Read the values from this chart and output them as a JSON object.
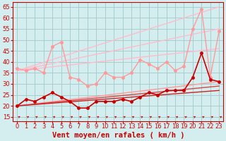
{
  "xlabel": "Vent moyen/en rafales ( km/h )",
  "bg_color": "#d4eef0",
  "grid_color": "#a8cdd0",
  "xlim": [
    -0.5,
    23.5
  ],
  "ylim": [
    13,
    67
  ],
  "yticks": [
    15,
    20,
    25,
    30,
    35,
    40,
    45,
    50,
    55,
    60,
    65
  ],
  "xticks": [
    0,
    1,
    2,
    3,
    4,
    5,
    6,
    7,
    8,
    9,
    10,
    11,
    12,
    13,
    14,
    15,
    16,
    17,
    18,
    19,
    20,
    21,
    22,
    23
  ],
  "lines": [
    {
      "x": [
        0,
        23
      ],
      "y": [
        36,
        65
      ],
      "color": "#ffbbcc",
      "lw": 1.0,
      "marker": null,
      "zorder": 2
    },
    {
      "x": [
        0,
        23
      ],
      "y": [
        36,
        55
      ],
      "color": "#ffbbcc",
      "lw": 1.0,
      "marker": null,
      "zorder": 2
    },
    {
      "x": [
        0,
        23
      ],
      "y": [
        36,
        46
      ],
      "color": "#ffbbcc",
      "lw": 1.0,
      "marker": null,
      "zorder": 2
    },
    {
      "x": [
        0,
        23
      ],
      "y": [
        20,
        31
      ],
      "color": "#ff9999",
      "lw": 1.0,
      "marker": null,
      "zorder": 2
    },
    {
      "x": [
        0,
        23
      ],
      "y": [
        20,
        29
      ],
      "color": "#dd4444",
      "lw": 1.0,
      "marker": null,
      "zorder": 2
    },
    {
      "x": [
        0,
        23
      ],
      "y": [
        20,
        27
      ],
      "color": "#cc2222",
      "lw": 1.0,
      "marker": null,
      "zorder": 2
    },
    {
      "x": [
        0,
        1,
        2,
        3,
        4,
        5,
        6,
        7,
        8,
        9,
        10,
        11,
        12,
        13,
        14,
        15,
        16,
        17,
        18,
        19,
        20,
        21,
        22,
        23
      ],
      "y": [
        37,
        36,
        37,
        35,
        47,
        49,
        33,
        32,
        29,
        30,
        35,
        33,
        33,
        35,
        41,
        39,
        37,
        40,
        36,
        38,
        55,
        64,
        33,
        54
      ],
      "color": "#ff9999",
      "lw": 1.0,
      "marker": "o",
      "ms": 2.5,
      "zorder": 4
    },
    {
      "x": [
        0,
        1,
        2,
        3,
        4,
        5,
        6,
        7,
        8,
        9,
        10,
        11,
        12,
        13,
        14,
        15,
        16,
        17,
        18,
        19,
        20,
        21,
        22,
        23
      ],
      "y": [
        20,
        23,
        22,
        24,
        26,
        24,
        22,
        19,
        19,
        22,
        22,
        22,
        23,
        22,
        24,
        26,
        25,
        27,
        27,
        27,
        33,
        44,
        32,
        31
      ],
      "color": "#cc0000",
      "lw": 1.2,
      "marker": "o",
      "ms": 2.5,
      "zorder": 5
    }
  ],
  "arrow_color": "#cc0000",
  "xlabel_color": "#cc0000",
  "xlabel_fontsize": 7.5,
  "tick_fontsize": 6,
  "tick_color": "#cc0000"
}
